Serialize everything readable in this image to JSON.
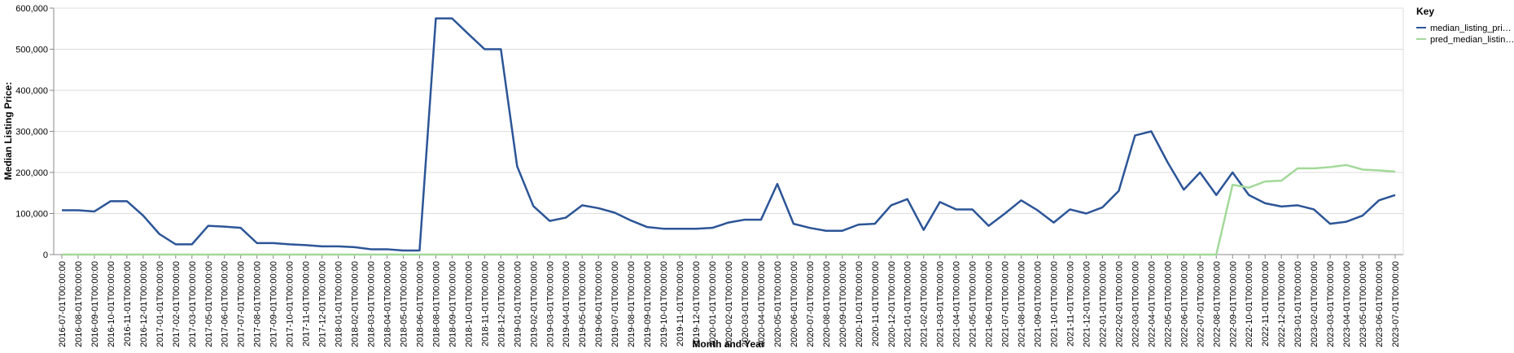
{
  "chart_data": {
    "type": "line",
    "x_label": "Month and Year",
    "y_label": "Median Listing Price:",
    "legend_title": "Key",
    "legend_position": "right",
    "grid": true,
    "categories": [
      "2016-07-01T00:00:00",
      "2016-08-01T00:00:00",
      "2016-09-01T00:00:00",
      "2016-10-01T00:00:00",
      "2016-11-01T00:00:00",
      "2016-12-01T00:00:00",
      "2017-01-01T00:00:00",
      "2017-02-01T00:00:00",
      "2017-03-01T00:00:00",
      "2017-05-01T00:00:00",
      "2017-06-01T00:00:00",
      "2017-07-01T00:00:00",
      "2017-08-01T00:00:00",
      "2017-09-01T00:00:00",
      "2017-10-01T00:00:00",
      "2017-11-01T00:00:00",
      "2017-12-01T00:00:00",
      "2018-01-01T00:00:00",
      "2018-02-01T00:00:00",
      "2018-03-01T00:00:00",
      "2018-04-01T00:00:00",
      "2018-05-01T00:00:00",
      "2018-06-01T00:00:00",
      "2018-08-01T00:00:00",
      "2018-09-01T00:00:00",
      "2018-10-01T00:00:00",
      "2018-11-01T00:00:00",
      "2018-12-01T00:00:00",
      "2019-01-01T00:00:00",
      "2019-02-01T00:00:00",
      "2019-03-01T00:00:00",
      "2019-04-01T00:00:00",
      "2019-05-01T00:00:00",
      "2019-06-01T00:00:00",
      "2019-07-01T00:00:00",
      "2019-08-01T00:00:00",
      "2019-09-01T00:00:00",
      "2019-10-01T00:00:00",
      "2019-11-01T00:00:00",
      "2019-12-01T00:00:00",
      "2020-01-01T00:00:00",
      "2020-02-01T00:00:00",
      "2020-03-01T00:00:00",
      "2020-04-01T00:00:00",
      "2020-05-01T00:00:00",
      "2020-06-01T00:00:00",
      "2020-07-01T00:00:00",
      "2020-08-01T00:00:00",
      "2020-09-01T00:00:00",
      "2020-10-01T00:00:00",
      "2020-11-01T00:00:00",
      "2020-12-01T00:00:00",
      "2021-01-01T00:00:00",
      "2021-02-01T00:00:00",
      "2021-03-01T00:00:00",
      "2021-04-01T00:00:00",
      "2021-05-01T00:00:00",
      "2021-06-01T00:00:00",
      "2021-07-01T00:00:00",
      "2021-08-01T00:00:00",
      "2021-09-01T00:00:00",
      "2021-10-01T00:00:00",
      "2021-11-01T00:00:00",
      "2021-12-01T00:00:00",
      "2022-01-01T00:00:00",
      "2022-02-01T00:00:00",
      "2022-03-01T00:00:00",
      "2022-04-01T00:00:00",
      "2022-05-01T00:00:00",
      "2022-06-01T00:00:00",
      "2022-07-01T00:00:00",
      "2022-08-01T00:00:00",
      "2022-09-01T00:00:00",
      "2022-10-01T00:00:00",
      "2022-11-01T00:00:00",
      "2022-12-01T00:00:00",
      "2023-01-01T00:00:00",
      "2023-02-01T00:00:00",
      "2023-03-01T00:00:00",
      "2023-04-01T00:00:00",
      "2023-05-01T00:00:00",
      "2023-06-01T00:00:00",
      "2023-07-01T00:00:00"
    ],
    "series": [
      {
        "name": "median_listing_pri…",
        "color": "#2c5597",
        "values": [
          108000,
          108000,
          105000,
          130000,
          130000,
          95000,
          50000,
          25000,
          25000,
          70000,
          68000,
          65000,
          28000,
          28000,
          25000,
          23000,
          20000,
          20000,
          18000,
          13000,
          13000,
          10000,
          10000,
          575000,
          575000,
          537000,
          500000,
          500000,
          215000,
          118000,
          82000,
          90000,
          120000,
          113000,
          102000,
          83000,
          67000,
          63000,
          63000,
          63000,
          65000,
          78000,
          85000,
          85000,
          172000,
          75000,
          65000,
          58000,
          58000,
          73000,
          75000,
          120000,
          135000,
          60000,
          128000,
          110000,
          110000,
          70000,
          100000,
          132000,
          108000,
          78000,
          110000,
          100000,
          115000,
          155000,
          290000,
          300000,
          225000,
          158000,
          200000,
          145000,
          200000,
          145000,
          125000,
          117000,
          120000,
          110000,
          75000,
          80000,
          95000,
          132000,
          145000
        ]
      },
      {
        "name": "pred_median_listin…",
        "color": "#a3d99a",
        "values": [
          0,
          0,
          0,
          0,
          0,
          0,
          0,
          0,
          0,
          0,
          0,
          0,
          0,
          0,
          0,
          0,
          0,
          0,
          0,
          0,
          0,
          0,
          0,
          0,
          0,
          0,
          0,
          0,
          0,
          0,
          0,
          0,
          0,
          0,
          0,
          0,
          0,
          0,
          0,
          0,
          0,
          0,
          0,
          0,
          0,
          0,
          0,
          0,
          0,
          0,
          0,
          0,
          0,
          0,
          0,
          0,
          0,
          0,
          0,
          0,
          0,
          0,
          0,
          0,
          0,
          0,
          0,
          0,
          0,
          0,
          0,
          0,
          170000,
          163000,
          178000,
          180000,
          210000,
          210000,
          213000,
          218000,
          207000,
          205000,
          202000
        ]
      }
    ],
    "ylim": [
      0,
      600000
    ],
    "yticks": [
      0,
      {
        "value": 100000,
        "label": "100,000"
      },
      {
        "value": 200000,
        "label": "200,000"
      },
      {
        "value": 300000,
        "label": "300,000"
      },
      {
        "value": 400000,
        "label": "400,000"
      },
      {
        "value": 500000,
        "label": "500,000"
      },
      {
        "value": 600000,
        "label": "600,000"
      }
    ]
  }
}
